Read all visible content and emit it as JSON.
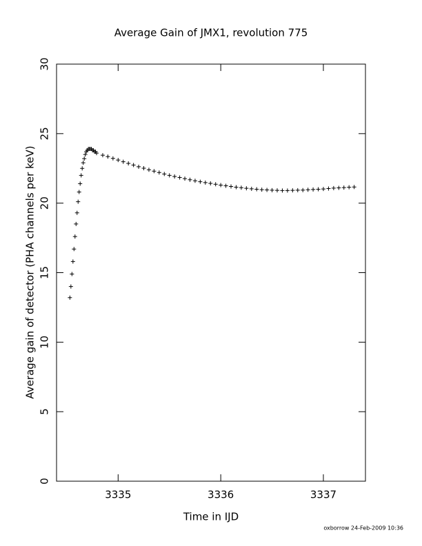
{
  "chart_data": {
    "type": "scatter",
    "title": "Average Gain of JMX1, revolution 775",
    "x_label": "Time in IJD",
    "y_label": "Average gain of detector (PHA channels per keV)",
    "footer": "oxborrow 24-Feb-2009 10:36",
    "marker": "+",
    "color": "#000000",
    "xlim": [
      3334.4,
      3337.41
    ],
    "ylim": [
      0,
      30
    ],
    "xticks": [
      3335,
      3336,
      3337
    ],
    "yticks": [
      0,
      5,
      10,
      15,
      20,
      25,
      30
    ],
    "x": [
      3334.53,
      3334.54,
      3334.55,
      3334.56,
      3334.57,
      3334.58,
      3334.59,
      3334.6,
      3334.61,
      3334.62,
      3334.63,
      3334.64,
      3334.65,
      3334.66,
      3334.67,
      3334.68,
      3334.69,
      3334.7,
      3334.71,
      3334.72,
      3334.73,
      3334.74,
      3334.75,
      3334.76,
      3334.77,
      3334.78,
      3334.79,
      3334.85,
      3334.9,
      3334.95,
      3335.0,
      3335.05,
      3335.1,
      3335.15,
      3335.2,
      3335.25,
      3335.3,
      3335.35,
      3335.4,
      3335.45,
      3335.5,
      3335.55,
      3335.6,
      3335.65,
      3335.7,
      3335.75,
      3335.8,
      3335.85,
      3335.9,
      3335.95,
      3336.0,
      3336.05,
      3336.1,
      3336.15,
      3336.2,
      3336.25,
      3336.3,
      3336.35,
      3336.4,
      3336.45,
      3336.5,
      3336.55,
      3336.6,
      3336.65,
      3336.7,
      3336.75,
      3336.8,
      3336.85,
      3336.9,
      3336.95,
      3337.0,
      3337.05,
      3337.1,
      3337.15,
      3337.2,
      3337.25,
      3337.3
    ],
    "values": [
      13.2,
      14.0,
      14.9,
      15.8,
      16.7,
      17.6,
      18.5,
      19.3,
      20.1,
      20.8,
      21.4,
      22.0,
      22.5,
      22.9,
      23.2,
      23.5,
      23.7,
      23.8,
      23.9,
      23.9,
      23.9,
      23.9,
      23.8,
      23.8,
      23.7,
      23.7,
      23.6,
      23.45,
      23.35,
      23.22,
      23.1,
      22.98,
      22.86,
      22.74,
      22.62,
      22.51,
      22.4,
      22.3,
      22.2,
      22.1,
      22.0,
      21.92,
      21.84,
      21.76,
      21.68,
      21.61,
      21.54,
      21.48,
      21.42,
      21.36,
      21.3,
      21.25,
      21.2,
      21.15,
      21.11,
      21.07,
      21.03,
      21.0,
      20.97,
      20.95,
      20.93,
      20.92,
      20.91,
      20.91,
      20.92,
      20.93,
      20.94,
      20.96,
      20.98,
      21.0,
      21.02,
      21.05,
      21.08,
      21.1,
      21.12,
      21.14,
      21.16
    ]
  }
}
